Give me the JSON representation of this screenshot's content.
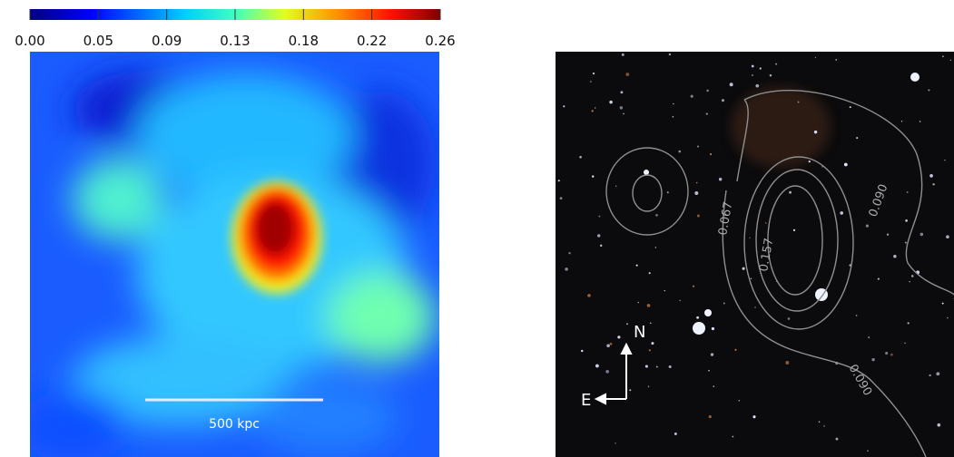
{
  "colorbar": {
    "ticks": [
      "0.00",
      "0.05",
      "0.09",
      "0.13",
      "0.18",
      "0.22",
      "0.26"
    ]
  },
  "left_panel": {
    "scale_bar_label": "500 kpc"
  },
  "right_panel": {
    "contour_labels": [
      "0.067",
      "0.157",
      "0.090",
      "0.090"
    ],
    "compass": {
      "north": "N",
      "east": "E"
    }
  }
}
